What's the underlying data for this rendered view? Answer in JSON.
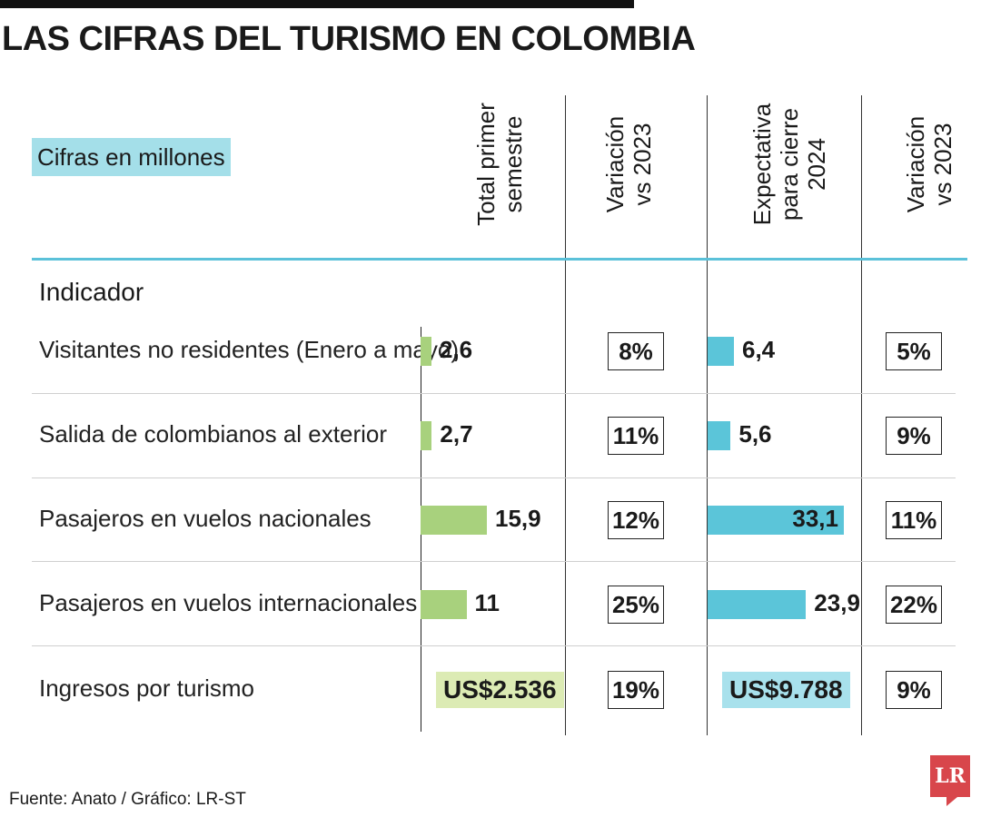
{
  "chart_data": {
    "type": "table",
    "title": "LAS CIFRAS DEL TURISMO EN COLOMBIA",
    "subtitle": "Cifras en millones",
    "row_header": "Indicador",
    "columns": [
      "Total primer\nsemestre",
      "Variación\nvs 2023",
      "Expectativa\npara cierre\n2024",
      "Variación\nvs 2023"
    ],
    "rows": [
      {
        "label": "Visitantes no residentes (Enero a mayo)",
        "total": 2.6,
        "total_text": "2,6",
        "var1": "8%",
        "expect": 6.4,
        "expect_text": "6,4",
        "var2": "5%"
      },
      {
        "label": "Salida de colombianos al exterior",
        "total": 2.7,
        "total_text": "2,7",
        "var1": "11%",
        "expect": 5.6,
        "expect_text": "5,6",
        "var2": "9%"
      },
      {
        "label": "Pasajeros en vuelos nacionales",
        "total": 15.9,
        "total_text": "15,9",
        "var1": "12%",
        "expect": 33.1,
        "expect_text": "33,1",
        "var2": "11%"
      },
      {
        "label": "Pasajeros en vuelos internacionales",
        "total": 11,
        "total_text": "11",
        "var1": "25%",
        "expect": 23.9,
        "expect_text": "23,9",
        "var2": "22%"
      },
      {
        "label": "Ingresos por turismo",
        "total_text": "US$2.536",
        "var1": "19%",
        "expect_text": "US$9.788",
        "var2": "9%"
      }
    ],
    "colors": {
      "total_bar": "#a8d17d",
      "expect_bar": "#5bc5d9",
      "subtitle_bg": "#a4dfe9",
      "rule": "#5bc1d9"
    }
  },
  "footer": {
    "source": "Fuente: Anato / Gráfico: LR-ST",
    "logo": "LR"
  }
}
